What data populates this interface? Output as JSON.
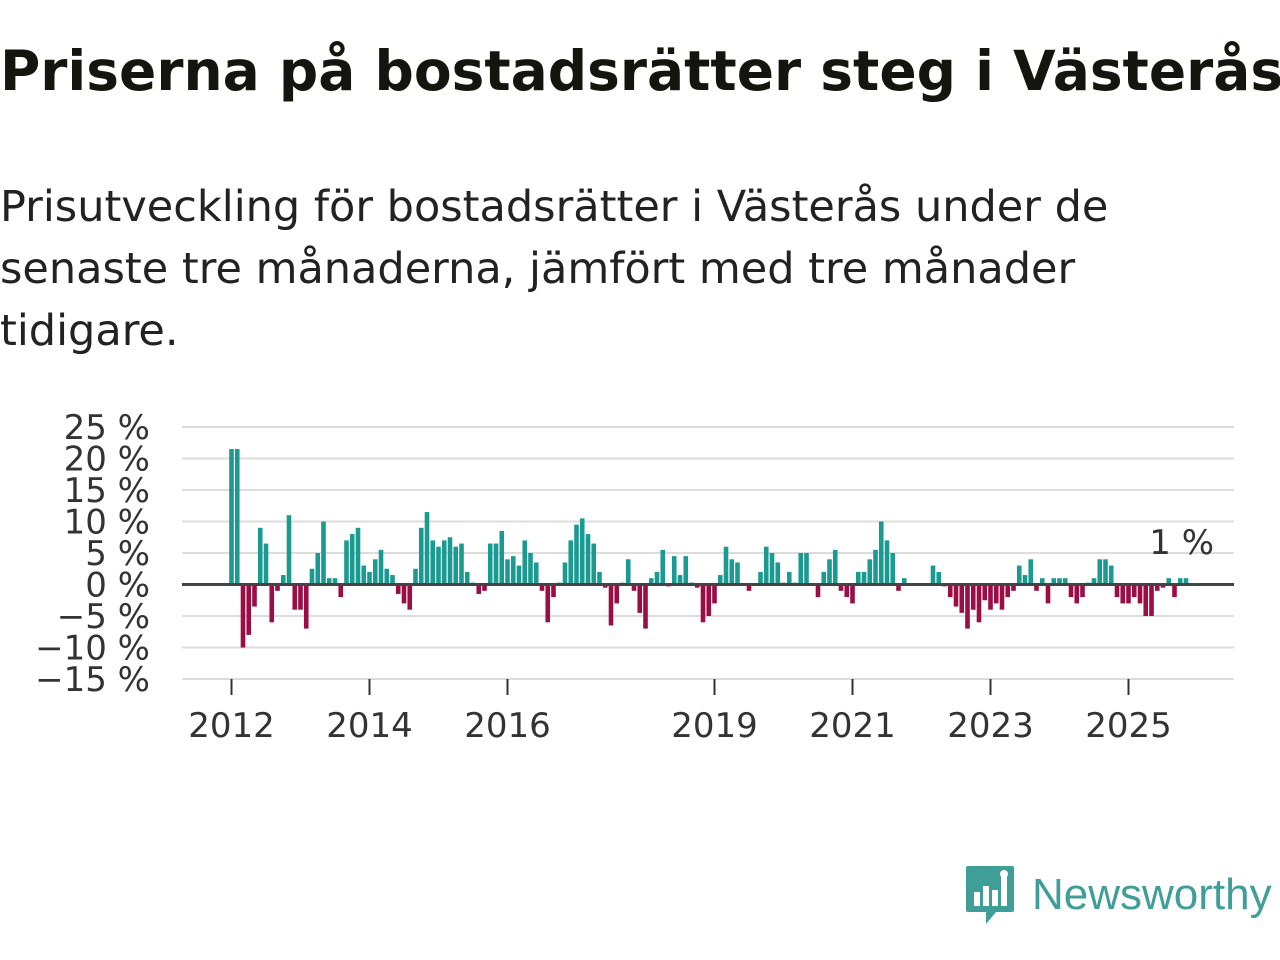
{
  "title": "Priserna på bostadsrätter steg i Västerås",
  "subtitle": "Prisutveckling för bostadsrätter i Västerås under de senaste tre månaderna, jämfört med tre månader tidigare.",
  "logo_text": "Newsworthy",
  "colors": {
    "positive": "#1a9a91",
    "negative": "#9a0d45",
    "logo": "#3f9e97"
  },
  "chart_data": {
    "type": "bar",
    "unit": "%",
    "ylim": [
      -15,
      25
    ],
    "y_ticks": [
      25,
      20,
      15,
      10,
      5,
      0,
      -5,
      -10,
      -15
    ],
    "y_tick_labels": [
      "25 %",
      "20 %",
      "15 %",
      "10 %",
      "5 %",
      "0 %",
      "−5 %",
      "−10 %",
      "−15 %"
    ],
    "x_tick_labels": [
      {
        "label": "2012",
        "index": 0
      },
      {
        "label": "2014",
        "index": 24
      },
      {
        "label": "2016",
        "index": 48
      },
      {
        "label": "2019",
        "index": 84
      },
      {
        "label": "2021",
        "index": 108
      },
      {
        "label": "2023",
        "index": 132
      },
      {
        "label": "2025",
        "index": 156
      }
    ],
    "first_month": "2012-01",
    "values": [
      21.5,
      21.5,
      -10,
      -8,
      -3.5,
      9,
      6.5,
      -6,
      -1,
      1.5,
      11,
      -4,
      -4,
      -7,
      2.5,
      5,
      10,
      1,
      1,
      -2,
      7,
      8,
      9,
      3,
      2,
      4,
      5.5,
      2.5,
      1.5,
      -1.5,
      -3,
      -4,
      2.5,
      9,
      11.5,
      7,
      6,
      7,
      7.5,
      6,
      6.5,
      2,
      0.3,
      -1.5,
      -1,
      6.5,
      6.5,
      8.5,
      4,
      4.5,
      3,
      7,
      5,
      3.5,
      -1,
      -6,
      -2,
      0.3,
      3.5,
      7,
      9.5,
      10.5,
      8,
      6.5,
      2,
      -0.5,
      -6.5,
      -3,
      0.3,
      4,
      -1,
      -4.5,
      -7,
      1,
      2,
      5.5,
      -0.3,
      4.5,
      1.5,
      4.5,
      0.3,
      -0.5,
      -6,
      -5,
      -3,
      1.5,
      6,
      4,
      3.5,
      0.2,
      -1,
      0.2,
      2,
      6,
      5,
      3.5,
      0.3,
      2,
      0.3,
      5,
      5,
      0.2,
      -2,
      2,
      4,
      5.5,
      -1,
      -2,
      -3,
      2,
      2,
      4,
      5.5,
      10,
      7,
      5,
      -1,
      1,
      0.2,
      0.2,
      0.2,
      0.2,
      3,
      2,
      -0.3,
      -2,
      -3.5,
      -4.5,
      -7,
      -4,
      -6,
      -2.5,
      -4,
      -3,
      -4,
      -2,
      -1,
      3,
      1.5,
      4,
      -1,
      1,
      -3,
      1,
      1,
      1,
      -2,
      -3,
      -2,
      0.3,
      1,
      4,
      4,
      3,
      -2,
      -3,
      -3,
      -2,
      -3,
      -5,
      -5,
      -1,
      -0.5,
      1,
      -2,
      1,
      1
    ],
    "last_value_label": "1 %"
  }
}
